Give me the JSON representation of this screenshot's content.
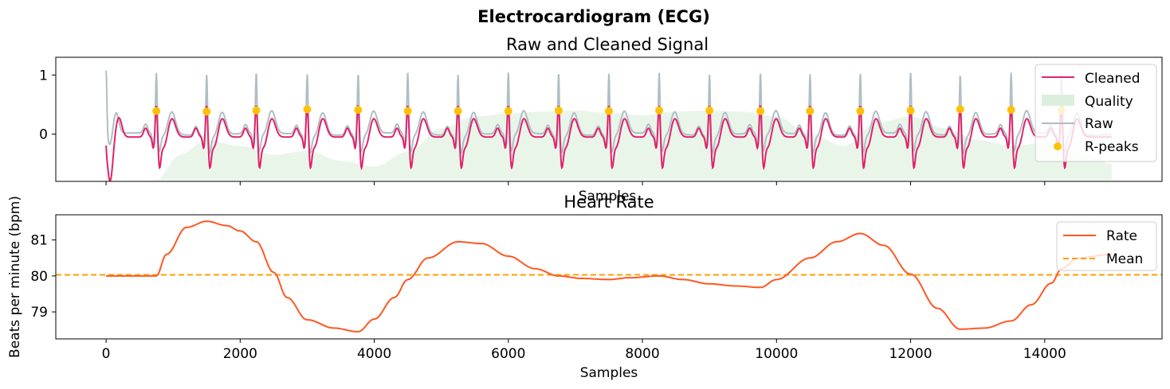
{
  "figure": {
    "suptitle": "Electrocardiogram (ECG)"
  },
  "colors": {
    "cleaned": "#E0236B",
    "raw": "#B0BEC5",
    "quality": "#DCEFDC",
    "rpeaks": "#FFC107",
    "rate": "#FF5722",
    "mean": "#FFA000"
  },
  "chart_data": [
    {
      "type": "line",
      "title": "Raw and Cleaned Signal",
      "xlabel": "Samples",
      "ylabel": "",
      "xlim": [
        -750,
        15750
      ],
      "ylim": [
        -0.8,
        1.3
      ],
      "yticks": [
        0,
        1
      ],
      "ytick_labels": [
        "0",
        "1"
      ],
      "xticks": [
        0,
        2000,
        4000,
        6000,
        8000,
        10000,
        12000,
        14000
      ],
      "grid": false,
      "legend_position": "top-right",
      "legend": [
        "Cleaned",
        "Quality",
        "Raw",
        "R-peaks"
      ],
      "series": [
        {
          "name": "Cleaned",
          "signal": "ecg_clean"
        },
        {
          "name": "Quality",
          "signal": "quality_area"
        },
        {
          "name": "Raw",
          "signal": "ecg_raw"
        },
        {
          "name": "R-peaks",
          "kind": "scatter",
          "x": [
            750,
            1500,
            2240,
            3000,
            3760,
            4500,
            5250,
            6000,
            6750,
            7500,
            8250,
            9000,
            9760,
            10500,
            11250,
            12000,
            12740,
            13500,
            14250
          ],
          "y": [
            0.39,
            0.38,
            0.4,
            0.42,
            0.41,
            0.39,
            0.39,
            0.39,
            0.4,
            0.39,
            0.4,
            0.4,
            0.39,
            0.39,
            0.39,
            0.4,
            0.42,
            0.41,
            0.4
          ]
        }
      ],
      "quality_curve": {
        "x": [
          750,
          1100,
          1500,
          2000,
          2500,
          3000,
          3500,
          4000,
          4500,
          5000,
          5500,
          6000,
          6500,
          7000,
          7500,
          8000,
          8500,
          9000,
          9500,
          10000,
          10500,
          11000,
          11500,
          12000,
          12500,
          13000,
          13500,
          14000,
          14500,
          15000
        ],
        "y": [
          -0.78,
          -0.35,
          -0.1,
          -0.2,
          -0.35,
          -0.28,
          -0.45,
          -0.55,
          -0.3,
          0.1,
          0.3,
          0.35,
          0.38,
          0.4,
          0.36,
          0.32,
          0.38,
          0.4,
          0.38,
          0.3,
          0.0,
          -0.2,
          0.2,
          0.3,
          0.1,
          -0.1,
          -0.2,
          -0.15,
          -0.3,
          -0.5
        ],
        "baseline": -0.78
      }
    },
    {
      "type": "line",
      "title": "Heart Rate",
      "xlabel": "Samples",
      "ylabel": "Beats per minute (bpm)",
      "xlim": [
        -750,
        15750
      ],
      "ylim": [
        78.25,
        81.7
      ],
      "yticks": [
        79,
        80,
        81
      ],
      "ytick_labels": [
        "79",
        "80",
        "81"
      ],
      "xticks": [
        0,
        2000,
        4000,
        6000,
        8000,
        10000,
        12000,
        14000
      ],
      "xtick_labels": [
        "0",
        "2000",
        "4000",
        "6000",
        "8000",
        "10000",
        "12000",
        "14000"
      ],
      "grid": false,
      "legend_position": "top-right",
      "legend": [
        "Rate",
        "Mean"
      ],
      "series": [
        {
          "name": "Rate",
          "x": [
            0,
            750,
            900,
            1200,
            1500,
            1800,
            2000,
            2240,
            2500,
            2700,
            3000,
            3400,
            3760,
            4000,
            4300,
            4500,
            4800,
            5250,
            5600,
            6000,
            6400,
            6750,
            7100,
            7500,
            7800,
            8250,
            8600,
            9000,
            9400,
            9760,
            10000,
            10500,
            10900,
            11250,
            11600,
            12000,
            12400,
            12740,
            13100,
            13500,
            13800,
            14100,
            14250,
            14500,
            15000
          ],
          "y": [
            80.0,
            80.0,
            80.6,
            81.35,
            81.52,
            81.4,
            81.25,
            80.95,
            80.1,
            79.4,
            78.78,
            78.55,
            78.45,
            78.8,
            79.4,
            79.9,
            80.5,
            80.95,
            80.9,
            80.55,
            80.2,
            80.0,
            79.93,
            79.9,
            79.95,
            80.0,
            79.9,
            79.78,
            79.72,
            79.68,
            79.9,
            80.5,
            80.95,
            81.18,
            80.85,
            80.05,
            79.1,
            78.52,
            78.55,
            78.75,
            79.2,
            79.8,
            80.2,
            80.5,
            80.6
          ]
        },
        {
          "name": "Mean",
          "y": 80.03
        }
      ]
    }
  ]
}
